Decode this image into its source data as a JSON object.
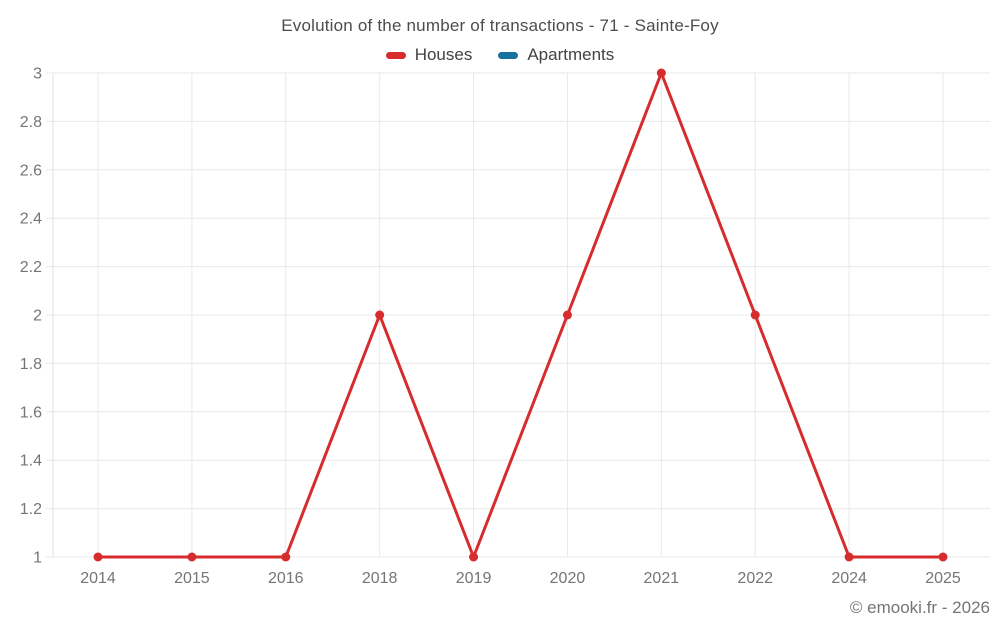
{
  "chart_data": {
    "type": "line",
    "title": "Evolution of the number of transactions - 71 - Sainte-Foy",
    "categories": [
      "2014",
      "2015",
      "2016",
      "2018",
      "2019",
      "2020",
      "2021",
      "2022",
      "2024",
      "2025"
    ],
    "series": [
      {
        "name": "Houses",
        "color": "#d62c2e",
        "values": [
          1,
          1,
          1,
          2,
          1,
          2,
          3,
          2,
          1,
          1
        ]
      },
      {
        "name": "Apartments",
        "color": "#17719f",
        "values": []
      }
    ],
    "ylim": [
      1,
      3
    ],
    "ytick_labels": [
      "3",
      "2.8",
      "2.6",
      "2.4",
      "2.2",
      "2",
      "1.8",
      "1.6",
      "1.4",
      "1.2",
      "1"
    ],
    "xlabel": "",
    "ylabel": "",
    "grid": true,
    "legend_position": "top",
    "marker": "circle"
  },
  "footer": "© emooki.fr - 2026",
  "colors": {
    "background": "#ffffff",
    "grid": "#e8e8e8",
    "axis": "#e0e0e0",
    "tick_text": "#757575",
    "title_text": "#4d4d4d",
    "legend_text": "#424242",
    "houses": "#d62c2e",
    "apartments": "#17719f"
  }
}
